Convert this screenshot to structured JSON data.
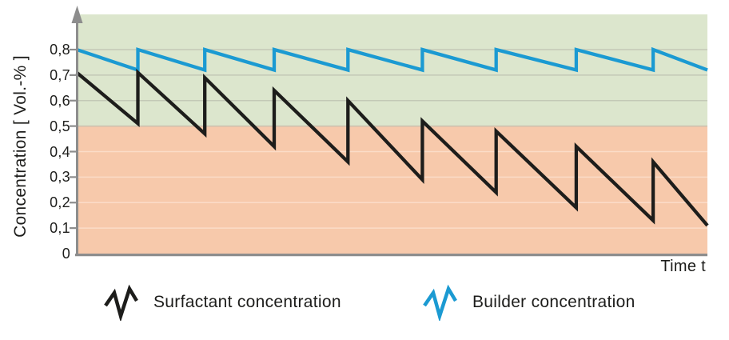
{
  "chart_data": {
    "type": "line",
    "title": "",
    "xlabel": "Time t",
    "ylabel": "Concentration [ Vol.-% ]",
    "x_range": [
      0,
      1
    ],
    "ylim": [
      0,
      0.94
    ],
    "grid": "horizontal",
    "legend_position": "bottom",
    "decimal_separator": ",",
    "y_ticks": [
      {
        "label": "0,8",
        "value": 0.8
      },
      {
        "label": "0,7",
        "value": 0.7
      },
      {
        "label": "0,6",
        "value": 0.6
      },
      {
        "label": "0,5",
        "value": 0.5
      },
      {
        "label": "0,4",
        "value": 0.4
      },
      {
        "label": "0,3",
        "value": 0.3
      },
      {
        "label": "0,2",
        "value": 0.2
      },
      {
        "label": "0,1",
        "value": 0.1
      },
      {
        "label": "0",
        "value": 0
      }
    ],
    "bands": [
      {
        "name": "upper-band-above-0.5",
        "from": 0.5,
        "to": 0.938,
        "color": "#dce6cd"
      },
      {
        "name": "lower-band-below-0.5",
        "from": 0,
        "to": 0.5,
        "color": "#f7c9ab"
      }
    ],
    "colors": {
      "axis": "#8d8d8d",
      "grid_upper": "#c3c9b6",
      "grid_boundary": "#c9bfae",
      "grid_lower": "#fbdcc8",
      "text": "#1d1d1b"
    },
    "series": [
      {
        "name": "Surfactant concentration",
        "color": "#1d1d1b",
        "points": [
          [
            0,
            0.71
          ],
          [
            0.097,
            0.51
          ],
          [
            0.097,
            0.71
          ],
          [
            0.203,
            0.47
          ],
          [
            0.203,
            0.69
          ],
          [
            0.313,
            0.42
          ],
          [
            0.313,
            0.64
          ],
          [
            0.43,
            0.36
          ],
          [
            0.43,
            0.6
          ],
          [
            0.548,
            0.29
          ],
          [
            0.548,
            0.52
          ],
          [
            0.665,
            0.24
          ],
          [
            0.665,
            0.48
          ],
          [
            0.792,
            0.18
          ],
          [
            0.792,
            0.42
          ],
          [
            0.914,
            0.13
          ],
          [
            0.914,
            0.36
          ],
          [
            1,
            0.11
          ]
        ]
      },
      {
        "name": "Builder concentration",
        "color": "#1b9ad2",
        "points": [
          [
            0,
            0.8
          ],
          [
            0.097,
            0.72
          ],
          [
            0.097,
            0.8
          ],
          [
            0.203,
            0.72
          ],
          [
            0.203,
            0.8
          ],
          [
            0.313,
            0.72
          ],
          [
            0.313,
            0.8
          ],
          [
            0.43,
            0.72
          ],
          [
            0.43,
            0.8
          ],
          [
            0.548,
            0.72
          ],
          [
            0.548,
            0.8
          ],
          [
            0.665,
            0.72
          ],
          [
            0.665,
            0.8
          ],
          [
            0.792,
            0.72
          ],
          [
            0.792,
            0.8
          ],
          [
            0.914,
            0.72
          ],
          [
            0.914,
            0.8
          ],
          [
            1,
            0.72
          ]
        ]
      }
    ]
  }
}
